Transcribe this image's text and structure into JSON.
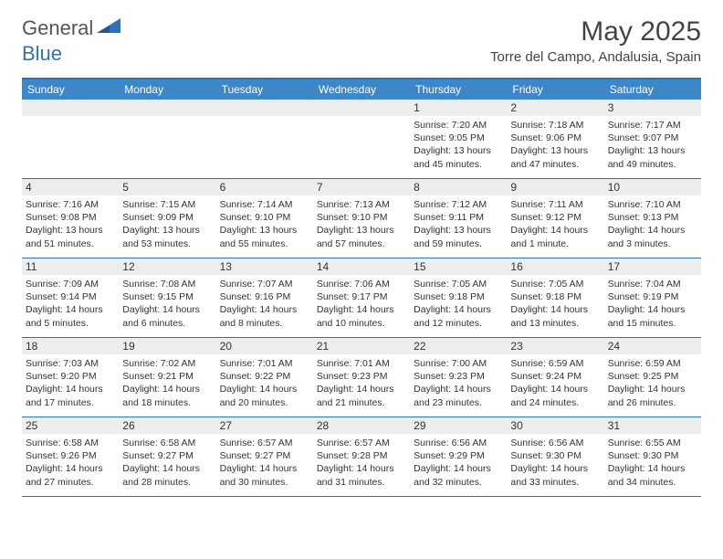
{
  "logo": {
    "general": "General",
    "blue": "Blue"
  },
  "title": "May 2025",
  "location": "Torre del Campo, Andalusia, Spain",
  "colors": {
    "header_bg": "#3d87c9",
    "border": "#2d73b8",
    "daynum_bg": "#ededed",
    "text": "#333333",
    "logo_gray": "#555555",
    "logo_blue": "#2d73b8"
  },
  "day_labels": [
    "Sunday",
    "Monday",
    "Tuesday",
    "Wednesday",
    "Thursday",
    "Friday",
    "Saturday"
  ],
  "weeks": [
    [
      {
        "empty": true
      },
      {
        "empty": true
      },
      {
        "empty": true
      },
      {
        "empty": true
      },
      {
        "day": "1",
        "sunrise": "Sunrise: 7:20 AM",
        "sunset": "Sunset: 9:05 PM",
        "daylight1": "Daylight: 13 hours",
        "daylight2": "and 45 minutes."
      },
      {
        "day": "2",
        "sunrise": "Sunrise: 7:18 AM",
        "sunset": "Sunset: 9:06 PM",
        "daylight1": "Daylight: 13 hours",
        "daylight2": "and 47 minutes."
      },
      {
        "day": "3",
        "sunrise": "Sunrise: 7:17 AM",
        "sunset": "Sunset: 9:07 PM",
        "daylight1": "Daylight: 13 hours",
        "daylight2": "and 49 minutes."
      }
    ],
    [
      {
        "day": "4",
        "sunrise": "Sunrise: 7:16 AM",
        "sunset": "Sunset: 9:08 PM",
        "daylight1": "Daylight: 13 hours",
        "daylight2": "and 51 minutes."
      },
      {
        "day": "5",
        "sunrise": "Sunrise: 7:15 AM",
        "sunset": "Sunset: 9:09 PM",
        "daylight1": "Daylight: 13 hours",
        "daylight2": "and 53 minutes."
      },
      {
        "day": "6",
        "sunrise": "Sunrise: 7:14 AM",
        "sunset": "Sunset: 9:10 PM",
        "daylight1": "Daylight: 13 hours",
        "daylight2": "and 55 minutes."
      },
      {
        "day": "7",
        "sunrise": "Sunrise: 7:13 AM",
        "sunset": "Sunset: 9:10 PM",
        "daylight1": "Daylight: 13 hours",
        "daylight2": "and 57 minutes."
      },
      {
        "day": "8",
        "sunrise": "Sunrise: 7:12 AM",
        "sunset": "Sunset: 9:11 PM",
        "daylight1": "Daylight: 13 hours",
        "daylight2": "and 59 minutes."
      },
      {
        "day": "9",
        "sunrise": "Sunrise: 7:11 AM",
        "sunset": "Sunset: 9:12 PM",
        "daylight1": "Daylight: 14 hours",
        "daylight2": "and 1 minute."
      },
      {
        "day": "10",
        "sunrise": "Sunrise: 7:10 AM",
        "sunset": "Sunset: 9:13 PM",
        "daylight1": "Daylight: 14 hours",
        "daylight2": "and 3 minutes."
      }
    ],
    [
      {
        "day": "11",
        "sunrise": "Sunrise: 7:09 AM",
        "sunset": "Sunset: 9:14 PM",
        "daylight1": "Daylight: 14 hours",
        "daylight2": "and 5 minutes."
      },
      {
        "day": "12",
        "sunrise": "Sunrise: 7:08 AM",
        "sunset": "Sunset: 9:15 PM",
        "daylight1": "Daylight: 14 hours",
        "daylight2": "and 6 minutes."
      },
      {
        "day": "13",
        "sunrise": "Sunrise: 7:07 AM",
        "sunset": "Sunset: 9:16 PM",
        "daylight1": "Daylight: 14 hours",
        "daylight2": "and 8 minutes."
      },
      {
        "day": "14",
        "sunrise": "Sunrise: 7:06 AM",
        "sunset": "Sunset: 9:17 PM",
        "daylight1": "Daylight: 14 hours",
        "daylight2": "and 10 minutes."
      },
      {
        "day": "15",
        "sunrise": "Sunrise: 7:05 AM",
        "sunset": "Sunset: 9:18 PM",
        "daylight1": "Daylight: 14 hours",
        "daylight2": "and 12 minutes."
      },
      {
        "day": "16",
        "sunrise": "Sunrise: 7:05 AM",
        "sunset": "Sunset: 9:18 PM",
        "daylight1": "Daylight: 14 hours",
        "daylight2": "and 13 minutes."
      },
      {
        "day": "17",
        "sunrise": "Sunrise: 7:04 AM",
        "sunset": "Sunset: 9:19 PM",
        "daylight1": "Daylight: 14 hours",
        "daylight2": "and 15 minutes."
      }
    ],
    [
      {
        "day": "18",
        "sunrise": "Sunrise: 7:03 AM",
        "sunset": "Sunset: 9:20 PM",
        "daylight1": "Daylight: 14 hours",
        "daylight2": "and 17 minutes."
      },
      {
        "day": "19",
        "sunrise": "Sunrise: 7:02 AM",
        "sunset": "Sunset: 9:21 PM",
        "daylight1": "Daylight: 14 hours",
        "daylight2": "and 18 minutes."
      },
      {
        "day": "20",
        "sunrise": "Sunrise: 7:01 AM",
        "sunset": "Sunset: 9:22 PM",
        "daylight1": "Daylight: 14 hours",
        "daylight2": "and 20 minutes."
      },
      {
        "day": "21",
        "sunrise": "Sunrise: 7:01 AM",
        "sunset": "Sunset: 9:23 PM",
        "daylight1": "Daylight: 14 hours",
        "daylight2": "and 21 minutes."
      },
      {
        "day": "22",
        "sunrise": "Sunrise: 7:00 AM",
        "sunset": "Sunset: 9:23 PM",
        "daylight1": "Daylight: 14 hours",
        "daylight2": "and 23 minutes."
      },
      {
        "day": "23",
        "sunrise": "Sunrise: 6:59 AM",
        "sunset": "Sunset: 9:24 PM",
        "daylight1": "Daylight: 14 hours",
        "daylight2": "and 24 minutes."
      },
      {
        "day": "24",
        "sunrise": "Sunrise: 6:59 AM",
        "sunset": "Sunset: 9:25 PM",
        "daylight1": "Daylight: 14 hours",
        "daylight2": "and 26 minutes."
      }
    ],
    [
      {
        "day": "25",
        "sunrise": "Sunrise: 6:58 AM",
        "sunset": "Sunset: 9:26 PM",
        "daylight1": "Daylight: 14 hours",
        "daylight2": "and 27 minutes."
      },
      {
        "day": "26",
        "sunrise": "Sunrise: 6:58 AM",
        "sunset": "Sunset: 9:27 PM",
        "daylight1": "Daylight: 14 hours",
        "daylight2": "and 28 minutes."
      },
      {
        "day": "27",
        "sunrise": "Sunrise: 6:57 AM",
        "sunset": "Sunset: 9:27 PM",
        "daylight1": "Daylight: 14 hours",
        "daylight2": "and 30 minutes."
      },
      {
        "day": "28",
        "sunrise": "Sunrise: 6:57 AM",
        "sunset": "Sunset: 9:28 PM",
        "daylight1": "Daylight: 14 hours",
        "daylight2": "and 31 minutes."
      },
      {
        "day": "29",
        "sunrise": "Sunrise: 6:56 AM",
        "sunset": "Sunset: 9:29 PM",
        "daylight1": "Daylight: 14 hours",
        "daylight2": "and 32 minutes."
      },
      {
        "day": "30",
        "sunrise": "Sunrise: 6:56 AM",
        "sunset": "Sunset: 9:30 PM",
        "daylight1": "Daylight: 14 hours",
        "daylight2": "and 33 minutes."
      },
      {
        "day": "31",
        "sunrise": "Sunrise: 6:55 AM",
        "sunset": "Sunset: 9:30 PM",
        "daylight1": "Daylight: 14 hours",
        "daylight2": "and 34 minutes."
      }
    ]
  ]
}
